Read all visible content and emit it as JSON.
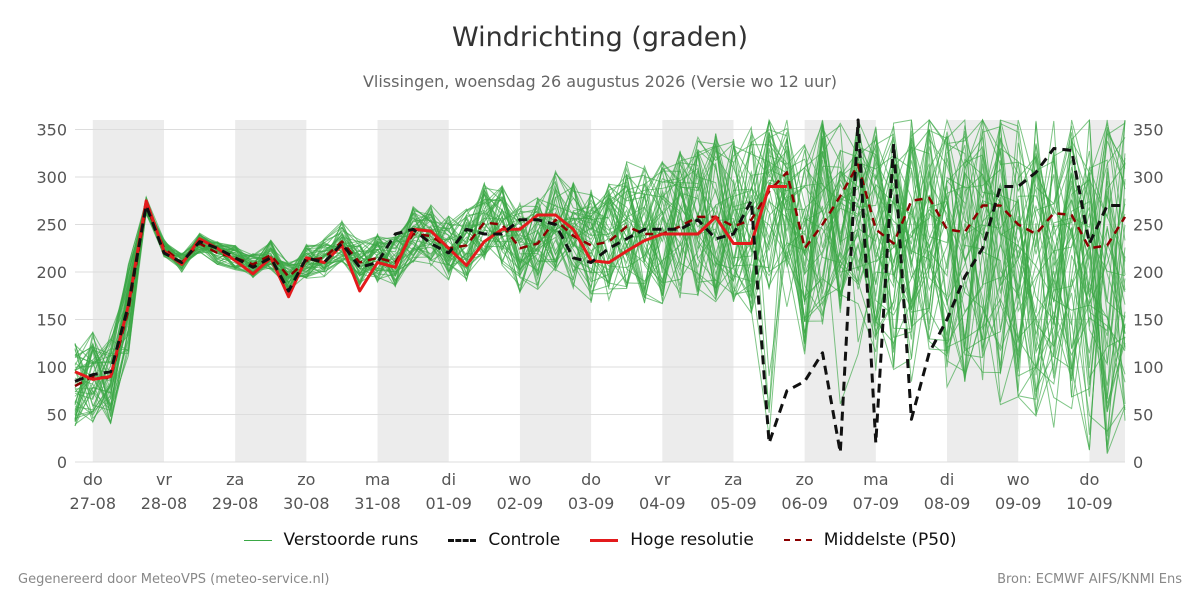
{
  "title": "Windrichting (graden)",
  "subtitle": "Vlissingen, woensdag 26 augustus 2026 (Versie wo 12 uur)",
  "footer_left": "Gegenereerd door MeteoVPS (meteo-service.nl)",
  "footer_right": "Bron: ECMWF AIFS/KNMI Ens",
  "legend": {
    "runs": "Verstoorde runs",
    "control": "Controle",
    "hres": "Hoge resolutie",
    "p50": "Middelste (P50)"
  },
  "colors": {
    "runs": "#3aa845",
    "control": "#111111",
    "hres": "#e31a1c",
    "p50": "#8b0000",
    "weekend_band": "#ececec",
    "grid": "#dddddd"
  },
  "chart_data": {
    "type": "line",
    "title": "Windrichting (graden)",
    "ylim": [
      0,
      360
    ],
    "yticks": [
      0,
      50,
      100,
      150,
      200,
      250,
      300,
      350
    ],
    "xlim": [
      26.75,
      41.5
    ],
    "x_unit": "day of month (aug 27 - sep 10)",
    "day_ticks": [
      {
        "day": 27,
        "weekday": "do",
        "date": "27-08"
      },
      {
        "day": 28,
        "weekday": "vr",
        "date": "28-08"
      },
      {
        "day": 29,
        "weekday": "za",
        "date": "29-08"
      },
      {
        "day": 30,
        "weekday": "zo",
        "date": "30-08"
      },
      {
        "day": 31,
        "weekday": "ma",
        "date": "31-08"
      },
      {
        "day": 32,
        "weekday": "di",
        "date": "01-09"
      },
      {
        "day": 33,
        "weekday": "wo",
        "date": "02-09"
      },
      {
        "day": 34,
        "weekday": "do",
        "date": "03-09"
      },
      {
        "day": 35,
        "weekday": "vr",
        "date": "04-09"
      },
      {
        "day": 36,
        "weekday": "za",
        "date": "05-09"
      },
      {
        "day": 37,
        "weekday": "zo",
        "date": "06-09"
      },
      {
        "day": 38,
        "weekday": "ma",
        "date": "07-09"
      },
      {
        "day": 39,
        "weekday": "di",
        "date": "08-09"
      },
      {
        "day": 40,
        "weekday": "wo",
        "date": "09-09"
      },
      {
        "day": 41,
        "weekday": "do",
        "date": "10-09"
      }
    ],
    "shaded_bands": [
      [
        27,
        28
      ],
      [
        29,
        30
      ],
      [
        31,
        32
      ],
      [
        33,
        34
      ],
      [
        35,
        36
      ],
      [
        37,
        38
      ],
      [
        39,
        40
      ],
      [
        41,
        41.5
      ]
    ],
    "series": [
      {
        "name": "Controle",
        "x": [
          26.75,
          27,
          27.25,
          27.5,
          27.75,
          28,
          28.25,
          28.5,
          28.75,
          29,
          29.25,
          29.5,
          29.75,
          30,
          30.25,
          30.5,
          30.75,
          31,
          31.25,
          31.5,
          31.75,
          32,
          32.25,
          32.5,
          32.75,
          33,
          33.25,
          33.5,
          33.75,
          34,
          34.25,
          34.5,
          34.75,
          35,
          35.25,
          35.5,
          35.75,
          36,
          36.25,
          36.5,
          36.75,
          37,
          37.25,
          37.5,
          37.75,
          38,
          38.25,
          38.5,
          38.75,
          39,
          39.25,
          39.5,
          39.75,
          40,
          40.25,
          40.5,
          40.75,
          41,
          41.25,
          41.5
        ],
        "values": [
          85,
          92,
          95,
          165,
          270,
          220,
          210,
          232,
          225,
          215,
          205,
          215,
          180,
          215,
          210,
          230,
          205,
          210,
          240,
          245,
          230,
          220,
          245,
          240,
          240,
          255,
          255,
          250,
          215,
          210,
          225,
          235,
          245,
          245,
          245,
          255,
          235,
          240,
          275,
          20,
          75,
          85,
          115,
          10,
          365,
          20,
          335,
          45,
          115,
          150,
          195,
          225,
          290,
          290,
          305,
          330,
          328,
          230,
          270,
          270
        ]
      },
      {
        "name": "Hoge resolutie",
        "x": [
          26.75,
          27,
          27.25,
          27.5,
          27.75,
          28,
          28.25,
          28.5,
          28.75,
          29,
          29.25,
          29.5,
          29.75,
          30,
          30.25,
          30.5,
          30.75,
          31,
          31.25,
          31.5,
          31.75,
          32,
          32.25,
          32.5,
          32.75,
          33,
          33.25,
          33.5,
          33.75,
          34,
          34.25,
          34.5,
          34.75,
          35,
          35.25,
          35.5,
          35.75,
          36,
          36.25,
          36.5,
          36.75
        ],
        "values": [
          95,
          87,
          90,
          165,
          275,
          222,
          208,
          235,
          225,
          212,
          198,
          215,
          174,
          215,
          210,
          228,
          180,
          210,
          205,
          245,
          243,
          225,
          207,
          232,
          245,
          245,
          260,
          260,
          245,
          212,
          210,
          222,
          233,
          240,
          240,
          240,
          258,
          230,
          230,
          290,
          290
        ]
      },
      {
        "name": "Middelste (P50)",
        "x": [
          26.75,
          27,
          27.25,
          27.5,
          27.75,
          28,
          28.25,
          28.5,
          28.75,
          29,
          29.25,
          29.5,
          29.75,
          30,
          30.25,
          30.5,
          30.75,
          31,
          31.25,
          31.5,
          31.75,
          32,
          32.25,
          32.5,
          32.75,
          33,
          33.25,
          33.5,
          33.75,
          34,
          34.25,
          34.5,
          34.75,
          35,
          35.25,
          35.5,
          35.75,
          36,
          36.25,
          36.5,
          36.75,
          37,
          37.25,
          37.5,
          37.75,
          38,
          38.25,
          38.5,
          38.75,
          39,
          39.25,
          39.5,
          39.75,
          40,
          40.25,
          40.5,
          40.75,
          41,
          41.25,
          41.5
        ],
        "values": [
          80,
          90,
          88,
          160,
          270,
          225,
          210,
          230,
          220,
          215,
          208,
          218,
          195,
          212,
          215,
          232,
          210,
          215,
          210,
          240,
          238,
          225,
          228,
          252,
          250,
          225,
          230,
          255,
          238,
          228,
          232,
          248,
          240,
          240,
          248,
          258,
          258,
          248,
          255,
          285,
          305,
          225,
          250,
          280,
          313,
          245,
          230,
          275,
          278,
          245,
          242,
          270,
          270,
          250,
          240,
          262,
          260,
          225,
          228,
          258
        ]
      }
    ],
    "perturbed_runs_name": "Verstoorde runs"
  }
}
